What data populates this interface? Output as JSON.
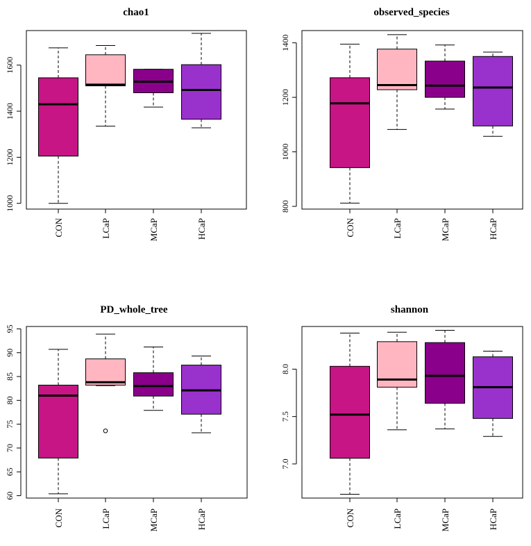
{
  "chart_data": [
    {
      "type": "boxplot",
      "title": "chao1",
      "categories": [
        "CON",
        "LCaP",
        "MCaP",
        "HCaP"
      ],
      "colors": [
        "#c71585",
        "#ffb6c1",
        "#8b008b",
        "#9932cc"
      ],
      "ylim": [
        975,
        1750
      ],
      "yticks": [
        1000,
        1200,
        1400,
        1600
      ],
      "ytick_labels": [
        "1000",
        "1200",
        "1400",
        "1600"
      ],
      "boxes": [
        {
          "whisker_low": 1000,
          "q1": 1205,
          "median": 1430,
          "q3": 1545,
          "whisker_high": 1675,
          "outliers": []
        },
        {
          "whisker_low": 1335,
          "q1": 1510,
          "median": 1515,
          "q3": 1645,
          "whisker_high": 1685,
          "outliers": []
        },
        {
          "whisker_low": 1418,
          "q1": 1480,
          "median": 1528,
          "q3": 1582,
          "whisker_high": 1582,
          "outliers": []
        },
        {
          "whisker_low": 1328,
          "q1": 1365,
          "median": 1492,
          "q3": 1602,
          "whisker_high": 1738,
          "outliers": []
        }
      ]
    },
    {
      "type": "boxplot",
      "title": "observed_species",
      "categories": [
        "CON",
        "LCaP",
        "MCaP",
        "HCaP"
      ],
      "colors": [
        "#c71585",
        "#ffb6c1",
        "#8b008b",
        "#9932cc"
      ],
      "ylim": [
        790,
        1445
      ],
      "yticks": [
        800,
        1000,
        1200,
        1400
      ],
      "ytick_labels": [
        "800",
        "1000",
        "1200",
        "1400"
      ],
      "boxes": [
        {
          "whisker_low": 812,
          "q1": 942,
          "median": 1178,
          "q3": 1272,
          "whisker_high": 1395,
          "outliers": []
        },
        {
          "whisker_low": 1082,
          "q1": 1228,
          "median": 1245,
          "q3": 1377,
          "whisker_high": 1430,
          "outliers": []
        },
        {
          "whisker_low": 1157,
          "q1": 1200,
          "median": 1243,
          "q3": 1333,
          "whisker_high": 1392,
          "outliers": []
        },
        {
          "whisker_low": 1057,
          "q1": 1095,
          "median": 1236,
          "q3": 1350,
          "whisker_high": 1366,
          "outliers": []
        }
      ]
    },
    {
      "type": "boxplot",
      "title": "PD_whole_tree",
      "categories": [
        "CON",
        "LCaP",
        "MCaP",
        "HCaP"
      ],
      "colors": [
        "#c71585",
        "#ffb6c1",
        "#8b008b",
        "#9932cc"
      ],
      "ylim": [
        59.5,
        95.5
      ],
      "yticks": [
        60,
        65,
        70,
        75,
        80,
        85,
        90,
        95
      ],
      "ytick_labels": [
        "60",
        "65",
        "70",
        "75",
        "80",
        "85",
        "90",
        "95"
      ],
      "boxes": [
        {
          "whisker_low": 60.4,
          "q1": 67.9,
          "median": 81.0,
          "q3": 83.2,
          "whisker_high": 90.7,
          "outliers": []
        },
        {
          "whisker_low": 83.1,
          "q1": 83.2,
          "median": 83.8,
          "q3": 88.7,
          "whisker_high": 93.9,
          "outliers": [
            73.6
          ]
        },
        {
          "whisker_low": 77.9,
          "q1": 80.9,
          "median": 83.0,
          "q3": 85.8,
          "whisker_high": 91.2,
          "outliers": []
        },
        {
          "whisker_low": 73.2,
          "q1": 77.1,
          "median": 82.1,
          "q3": 87.4,
          "whisker_high": 89.3,
          "outliers": []
        }
      ]
    },
    {
      "type": "boxplot",
      "title": "shannon",
      "categories": [
        "CON",
        "LCaP",
        "MCaP",
        "HCaP"
      ],
      "colors": [
        "#c71585",
        "#ffb6c1",
        "#8b008b",
        "#9932cc"
      ],
      "ylim": [
        6.64,
        8.45
      ],
      "yticks": [
        7.0,
        7.5,
        8.0
      ],
      "ytick_labels": [
        "7.0",
        "7.5",
        "8.0"
      ],
      "boxes": [
        {
          "whisker_low": 6.68,
          "q1": 7.06,
          "median": 7.52,
          "q3": 8.03,
          "whisker_high": 8.38,
          "outliers": []
        },
        {
          "whisker_low": 7.36,
          "q1": 7.81,
          "median": 7.89,
          "q3": 8.29,
          "whisker_high": 8.39,
          "outliers": []
        },
        {
          "whisker_low": 7.37,
          "q1": 7.64,
          "median": 7.93,
          "q3": 8.28,
          "whisker_high": 8.41,
          "outliers": []
        },
        {
          "whisker_low": 7.29,
          "q1": 7.48,
          "median": 7.81,
          "q3": 8.13,
          "whisker_high": 8.19,
          "outliers": []
        }
      ]
    }
  ]
}
